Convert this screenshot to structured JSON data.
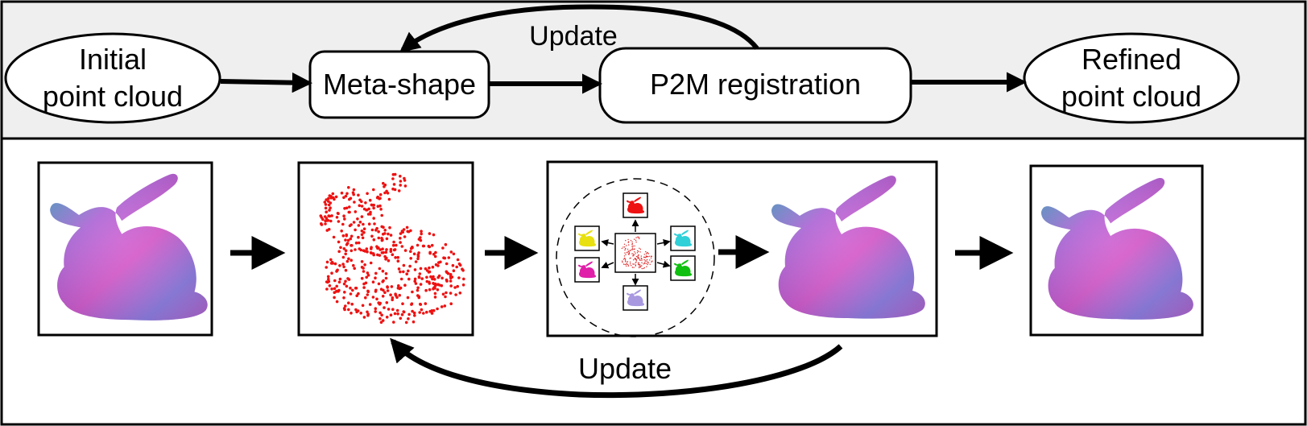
{
  "flow": {
    "initial": [
      "Initial",
      "point cloud"
    ],
    "meta_shape": "Meta-shape",
    "p2m": "P2M registration",
    "refined": [
      "Refined",
      "point cloud"
    ],
    "update_top": "Update"
  },
  "illustration": {
    "update_bottom": "Update",
    "thumb_colors": [
      "#ee1111",
      "#e8e010",
      "#30d0d8",
      "#e020a8",
      "#10c010",
      "#a898e0"
    ]
  }
}
